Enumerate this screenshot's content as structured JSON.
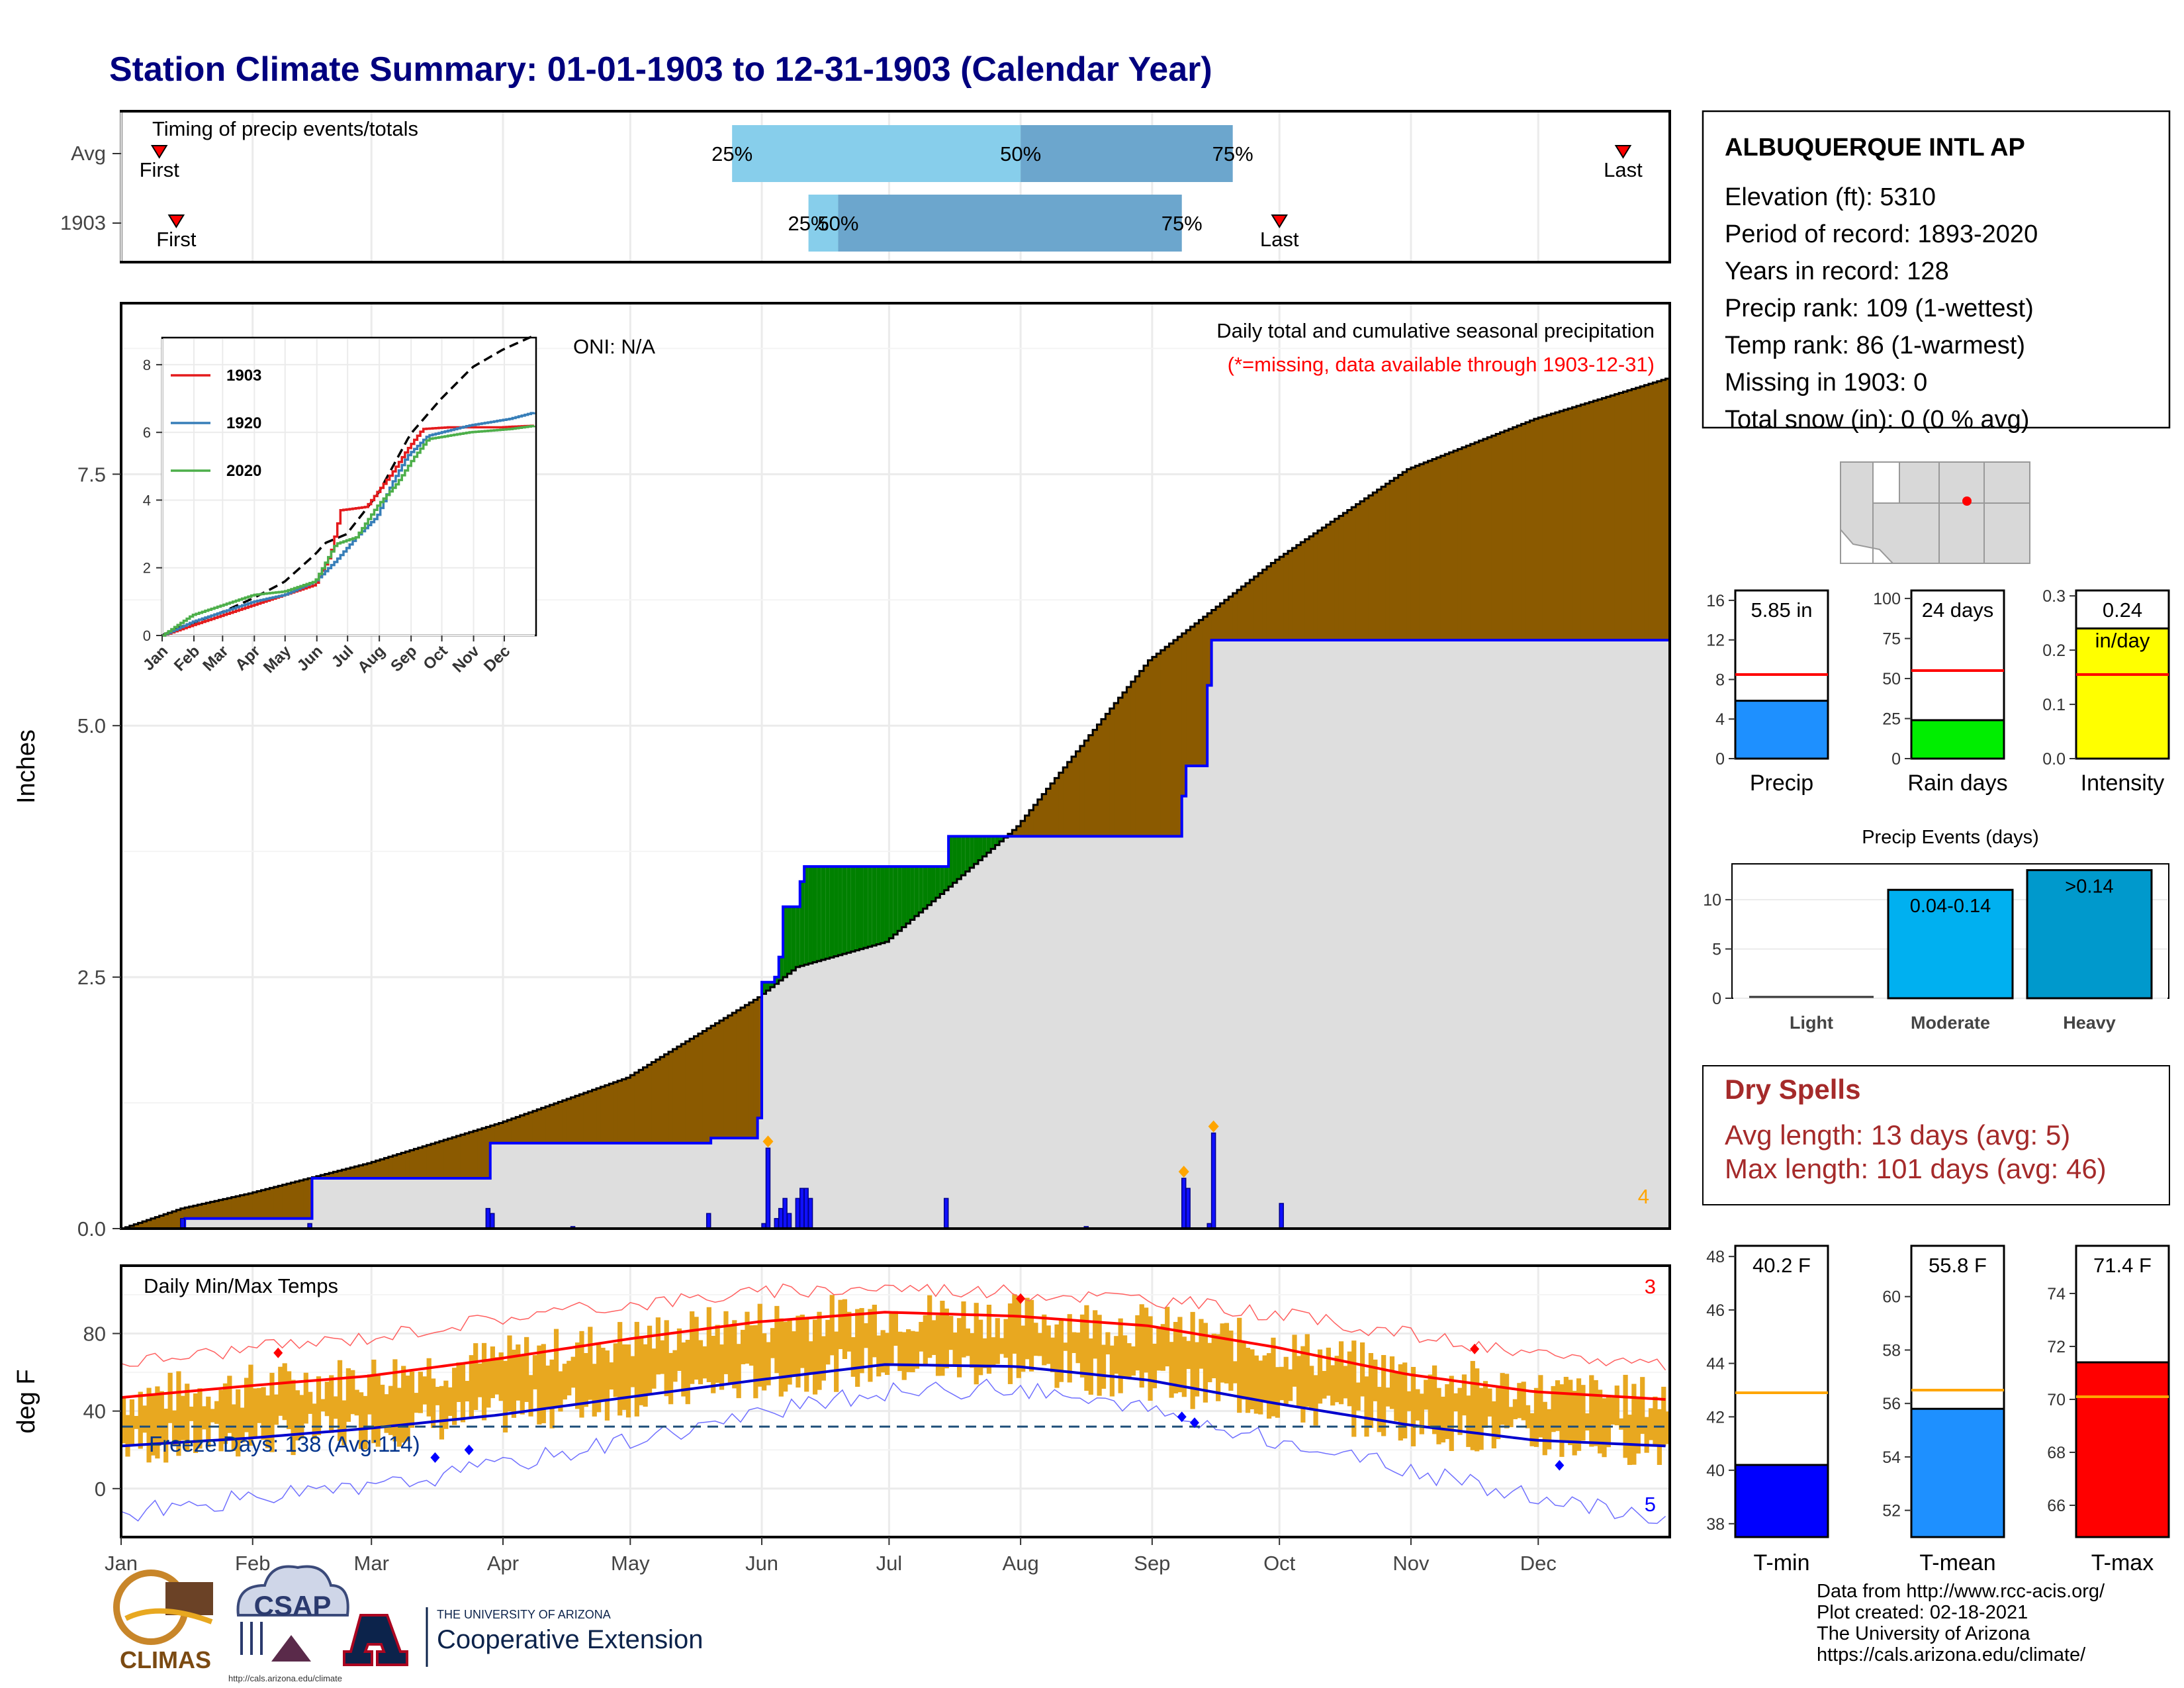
{
  "title": "Station Climate Summary: 01-01-1903 to 12-31-1903 (Calendar Year)",
  "colors": {
    "title": "#00007f",
    "accum_brown": "#8b5a00",
    "accum_green": "#008000",
    "obs_fill": "#dedede",
    "obs_line": "#0000ff",
    "band_light": "#87ceeb",
    "band_dark": "#6ca6cd",
    "temp_band": "#e8a820",
    "normal_max": "#ff0000",
    "normal_min": "#0000cd",
    "record_max": "#ff6060",
    "record_min": "#7070ff",
    "dry_spell": "#a52a2a"
  },
  "timing": {
    "heading": "Timing of precip events/totals",
    "rows": [
      {
        "label": "Avg",
        "p25_label": "25%",
        "p50_label": "50%",
        "p75_label": "75%",
        "first_label": "First",
        "last_label": "Last",
        "first_doy": 10,
        "p25_doy": 145,
        "p50_doy": 213,
        "p75_doy": 263,
        "last_doy": 355
      },
      {
        "label": "1903",
        "p25_label": "25%",
        "p50_label": "50%",
        "p75_label": "75%",
        "first_label": "First",
        "last_label": "Last",
        "first_doy": 14,
        "p25_doy": 163,
        "p50_doy": 170,
        "p75_doy": 251,
        "last_doy": 274
      }
    ]
  },
  "precip_panel": {
    "title": "Daily total and cumulative seasonal precipitation",
    "subtitle": "(*=missing, data available through 1903-12-31)",
    "oni": "ONI: N/A",
    "ylabel": "Inches",
    "yticks": [
      "0.0",
      "2.5",
      "5.0",
      "7.5"
    ],
    "corner_count": "4"
  },
  "inset": {
    "yticks": [
      "0",
      "2",
      "4",
      "6",
      "8"
    ],
    "months": [
      "Jan",
      "Feb",
      "Mar",
      "Apr",
      "May",
      "Jun",
      "Jul",
      "Aug",
      "Sep",
      "Oct",
      "Nov",
      "Dec"
    ],
    "legend": [
      "1903",
      "1920",
      "2020"
    ],
    "legend_colors": [
      "#e41a1c",
      "#377eb8",
      "#4daf4a"
    ]
  },
  "temp_panel": {
    "title": "Daily Min/Max Temps",
    "ylabel": "deg F",
    "yticks": [
      "0",
      "40",
      "80"
    ],
    "freeze_label": "Freeze Days: 138 (Avg:114)",
    "max_count": "3",
    "min_count": "5"
  },
  "months_axis": [
    "Jan",
    "Feb",
    "Mar",
    "Apr",
    "May",
    "Jun",
    "Jul",
    "Aug",
    "Sep",
    "Oct",
    "Nov",
    "Dec"
  ],
  "station": {
    "name": "ALBUQUERQUE INTL AP",
    "lines": [
      "Elevation (ft): 5310",
      "Period of record: 1893-2020",
      "Years in record: 128",
      "Precip rank: 109 (1-wettest)",
      "Temp rank: 86 (1-warmest)",
      "Missing in 1903: 0",
      "Total snow (in): 0 (0 % avg)"
    ]
  },
  "dry_spells": {
    "title": "Dry Spells",
    "avg": "Avg length: 13 days (avg: 5)",
    "max": "Max length: 101 days (avg: 46)"
  },
  "precip_events": {
    "title": "Precip Events (days)",
    "categories": [
      "Light",
      "Moderate",
      "Heavy"
    ],
    "bar_labels": [
      "",
      "0.04-0.14",
      ">0.14"
    ],
    "yticks": [
      "0",
      "5",
      "10"
    ]
  },
  "footer": [
    "Data from http://www.rcc-acis.org/",
    "Plot created: 02-18-2021",
    "The University of Arizona",
    "https://cals.arizona.edu/climate/"
  ],
  "logos": {
    "climas": "CLIMAS",
    "csap": "CSAP",
    "csap_url": "http://cals.arizona.edu/climate",
    "ua_top": "THE UNIVERSITY OF ARIZONA",
    "ua_bottom": "Cooperative Extension"
  },
  "chart_data": [
    {
      "type": "area",
      "title": "Daily total and cumulative seasonal precipitation",
      "ylabel": "Inches",
      "ylim": [
        0,
        9.2
      ],
      "x_unit": "day of year",
      "series": [
        {
          "name": "Average cumulative",
          "x": [
            1,
            15,
            31,
            59,
            90,
            120,
            151,
            160,
            181,
            196,
            212,
            243,
            273,
            304,
            334,
            365
          ],
          "values": [
            0.0,
            0.2,
            0.35,
            0.65,
            1.05,
            1.5,
            2.3,
            2.6,
            2.85,
            3.4,
            4.0,
            5.65,
            6.65,
            7.55,
            8.05,
            8.45
          ]
        },
        {
          "name": "1903 cumulative",
          "x": [
            1,
            15,
            16,
            31,
            45,
            46,
            87,
            88,
            140,
            151,
            152,
            155,
            156,
            157,
            161,
            162,
            195,
            196,
            227,
            228,
            229,
            251,
            252,
            257,
            258,
            365
          ],
          "values": [
            0.0,
            0.0,
            0.1,
            0.1,
            0.1,
            0.5,
            0.5,
            0.85,
            0.9,
            1.1,
            2.45,
            2.5,
            2.7,
            3.2,
            3.45,
            3.6,
            3.6,
            3.9,
            3.9,
            3.9,
            3.9,
            4.3,
            4.6,
            5.4,
            5.85,
            5.85
          ]
        },
        {
          "name": "1903 daily",
          "x": [
            15,
            45,
            87,
            88,
            107,
            139,
            152,
            153,
            155,
            156,
            157,
            158,
            160,
            161,
            162,
            163,
            195,
            228,
            251,
            252,
            257,
            258,
            274
          ],
          "values": [
            0.1,
            0.05,
            0.2,
            0.15,
            0.02,
            0.15,
            0.05,
            0.8,
            0.1,
            0.2,
            0.3,
            0.15,
            0.3,
            0.4,
            0.4,
            0.3,
            0.3,
            0.02,
            0.5,
            0.4,
            0.05,
            0.95,
            0.25
          ]
        }
      ]
    },
    {
      "type": "line",
      "title": "Daily Min/Max Temps",
      "ylabel": "deg F",
      "ylim": [
        -25,
        115
      ],
      "series": [
        {
          "name": "Normal max",
          "x": [
            1,
            31,
            59,
            90,
            120,
            151,
            181,
            212,
            243,
            273,
            304,
            334,
            365
          ],
          "values": [
            47,
            53,
            58,
            67,
            77,
            86,
            91,
            89,
            84,
            73,
            59,
            50,
            46
          ]
        },
        {
          "name": "Normal min",
          "x": [
            1,
            31,
            59,
            90,
            120,
            151,
            181,
            212,
            243,
            273,
            304,
            334,
            365
          ],
          "values": [
            22,
            26,
            31,
            38,
            47,
            56,
            64,
            63,
            56,
            44,
            33,
            25,
            22
          ]
        },
        {
          "name": "Record max",
          "x": [
            1,
            31,
            59,
            90,
            120,
            151,
            181,
            212,
            243,
            273,
            304,
            334,
            365
          ],
          "values": [
            65,
            72,
            78,
            88,
            95,
            101,
            104,
            101,
            98,
            90,
            80,
            68,
            65
          ]
        },
        {
          "name": "Record min",
          "x": [
            1,
            31,
            59,
            90,
            120,
            151,
            181,
            212,
            243,
            273,
            304,
            334,
            365
          ],
          "values": [
            -13,
            -5,
            0,
            12,
            25,
            38,
            50,
            52,
            40,
            25,
            10,
            -5,
            -15
          ]
        }
      ],
      "freeze_line": 32
    },
    {
      "type": "bar",
      "title": "",
      "categories": [
        "Precip"
      ],
      "values": [
        5.85
      ],
      "normal": 8.5,
      "ylim": [
        0,
        17
      ],
      "label": "5.85 in",
      "color": "#1e90ff"
    },
    {
      "type": "bar",
      "title": "",
      "categories": [
        "Rain days"
      ],
      "values": [
        24
      ],
      "normal": 55,
      "ylim": [
        0,
        105
      ],
      "label": "24 days",
      "color": "#00ee00"
    },
    {
      "type": "bar",
      "title": "",
      "categories": [
        "Intensity"
      ],
      "values": [
        0.24
      ],
      "normal": 0.155,
      "ylim": [
        0,
        0.31
      ],
      "label": "0.24 in/day",
      "color": "#ffff00"
    },
    {
      "type": "bar",
      "title": "Precip Events (days)",
      "categories": [
        "Light",
        "Moderate",
        "Heavy"
      ],
      "values": [
        0,
        11,
        13
      ],
      "ylim": [
        0,
        13.5
      ]
    },
    {
      "type": "bar",
      "title": "",
      "categories": [
        "T-min"
      ],
      "values": [
        40.2
      ],
      "normal": 42.9,
      "ylim": [
        37.5,
        48.4
      ],
      "label": "40.2 F",
      "color": "#0000ff"
    },
    {
      "type": "bar",
      "title": "",
      "categories": [
        "T-mean"
      ],
      "values": [
        55.8
      ],
      "normal": 56.5,
      "ylim": [
        51.0,
        61.9
      ],
      "label": "55.8 F",
      "color": "#1e90ff"
    },
    {
      "type": "bar",
      "title": "",
      "categories": [
        "T-max"
      ],
      "values": [
        71.4
      ],
      "normal": 70.1,
      "ylim": [
        64.8,
        75.8
      ],
      "label": "71.4 F",
      "color": "#ff0000"
    }
  ]
}
